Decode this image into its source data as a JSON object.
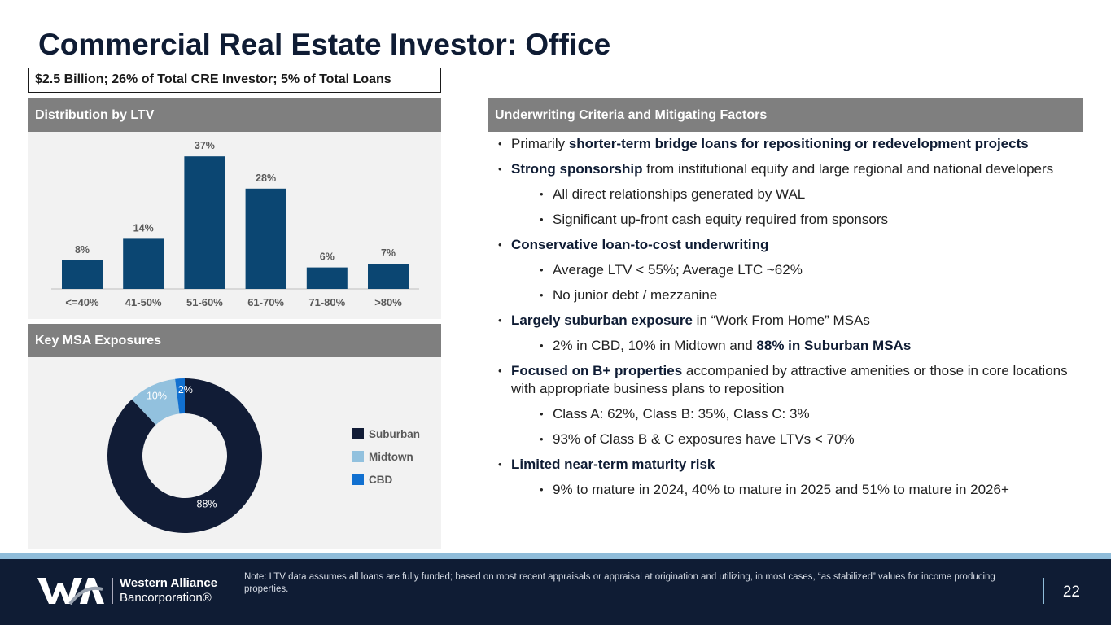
{
  "title": "Commercial Real Estate Investor: Office",
  "summary": "$2.5 Billion; 26% of Total CRE Investor; 5% of Total Loans",
  "ltv_header": "Distribution by LTV",
  "msa_header": "Key MSA Exposures",
  "criteria_header": "Underwriting Criteria and Mitigating Factors",
  "colors": {
    "bar": "#0b4672",
    "suburban": "#111c36",
    "midtown": "#92c1de",
    "cbd": "#1170d0",
    "header": "#7f7f7f",
    "footer": "#0f1c34"
  },
  "chart_data": [
    {
      "type": "bar",
      "title": "Distribution by LTV",
      "categories": [
        "<=40%",
        "41-50%",
        "51-60%",
        "61-70%",
        "71-80%",
        ">80%"
      ],
      "values": [
        8,
        14,
        37,
        28,
        6,
        7
      ],
      "labels": [
        "8%",
        "14%",
        "37%",
        "28%",
        "6%",
        "7%"
      ],
      "unit": "%",
      "grid": false
    },
    {
      "type": "pie",
      "title": "Key MSA Exposures",
      "donut": true,
      "categories": [
        "Suburban",
        "Midtown",
        "CBD"
      ],
      "values": [
        88,
        10,
        2
      ],
      "labels": [
        "88%",
        "10%",
        "2%"
      ],
      "legend": "right"
    }
  ],
  "bullets": [
    {
      "level": 1,
      "parts": [
        {
          "t": "Primarily "
        },
        {
          "t": "shorter-term bridge loans for repositioning or redevelopment projects",
          "b": true
        }
      ]
    },
    {
      "level": 1,
      "parts": [
        {
          "t": "Strong sponsorship",
          "b": true
        },
        {
          "t": " from institutional equity and large regional and national developers"
        }
      ]
    },
    {
      "level": 2,
      "parts": [
        {
          "t": "All direct relationships generated by WAL"
        }
      ]
    },
    {
      "level": 2,
      "parts": [
        {
          "t": "Significant up-front cash equity required from sponsors"
        }
      ]
    },
    {
      "level": 1,
      "parts": [
        {
          "t": "Conservative loan-to-cost underwriting",
          "b": true
        }
      ]
    },
    {
      "level": 2,
      "parts": [
        {
          "t": "Average LTV < 55%; Average LTC ~62%"
        }
      ]
    },
    {
      "level": 2,
      "parts": [
        {
          "t": "No junior debt / mezzanine"
        }
      ]
    },
    {
      "level": 1,
      "parts": [
        {
          "t": "Largely suburban exposure",
          "b": true
        },
        {
          "t": " in “Work From Home” MSAs"
        }
      ]
    },
    {
      "level": 2,
      "parts": [
        {
          "t": "2% in CBD, 10% in Midtown and "
        },
        {
          "t": "88% in Suburban MSAs",
          "b": true
        }
      ]
    },
    {
      "level": 1,
      "parts": [
        {
          "t": "Focused on B+ properties",
          "b": true
        },
        {
          "t": " accompanied by attractive amenities or those in core locations with appropriate business plans to reposition"
        }
      ]
    },
    {
      "level": 2,
      "parts": [
        {
          "t": "Class A: 62%, Class B: 35%, Class C: 3%"
        }
      ]
    },
    {
      "level": 2,
      "parts": [
        {
          "t": "93% of Class B & C exposures have LTVs < 70%"
        }
      ]
    },
    {
      "level": 1,
      "parts": [
        {
          "t": "Limited near-term maturity risk",
          "b": true
        }
      ]
    },
    {
      "level": 2,
      "parts": [
        {
          "t": "9% to mature in 2024, 40% to mature in 2025 and 51% to mature in 2026+"
        }
      ]
    }
  ],
  "footer": {
    "note": "Note: LTV data assumes all loans are fully funded; based on most recent appraisals or appraisal at origination and utilizing, in most cases, “as stabilized” values for income producing properties.",
    "logo_line1": "Western Alliance",
    "logo_line2": "Bancorporation®",
    "logo_mark": "WA",
    "page": "22"
  }
}
